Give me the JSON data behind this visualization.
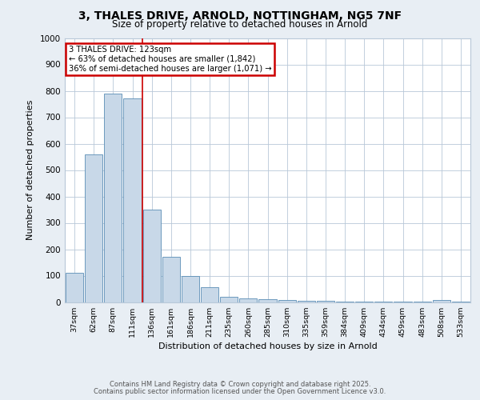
{
  "title_line1": "3, THALES DRIVE, ARNOLD, NOTTINGHAM, NG5 7NF",
  "title_line2": "Size of property relative to detached houses in Arnold",
  "xlabel": "Distribution of detached houses by size in Arnold",
  "ylabel": "Number of detached properties",
  "categories": [
    "37sqm",
    "62sqm",
    "87sqm",
    "111sqm",
    "136sqm",
    "161sqm",
    "186sqm",
    "211sqm",
    "235sqm",
    "260sqm",
    "285sqm",
    "310sqm",
    "335sqm",
    "359sqm",
    "384sqm",
    "409sqm",
    "434sqm",
    "459sqm",
    "483sqm",
    "508sqm",
    "533sqm"
  ],
  "values": [
    110,
    560,
    790,
    770,
    350,
    170,
    100,
    55,
    20,
    15,
    10,
    8,
    5,
    5,
    3,
    3,
    2,
    2,
    2,
    7,
    2
  ],
  "bar_color": "#c8d8e8",
  "bar_edge_color": "#5a8db5",
  "red_line_x": 3.5,
  "annotation_text": "3 THALES DRIVE: 123sqm\n← 63% of detached houses are smaller (1,842)\n36% of semi-detached houses are larger (1,071) →",
  "annotation_box_color": "#ffffff",
  "annotation_box_edge_color": "#cc0000",
  "red_line_color": "#cc0000",
  "ylim": [
    0,
    1000
  ],
  "yticks": [
    0,
    100,
    200,
    300,
    400,
    500,
    600,
    700,
    800,
    900,
    1000
  ],
  "footer_line1": "Contains HM Land Registry data © Crown copyright and database right 2025.",
  "footer_line2": "Contains public sector information licensed under the Open Government Licence v3.0.",
  "bg_color": "#e8eef4",
  "plot_bg_color": "#ffffff",
  "grid_color": "#b8c8d8",
  "title_color": "#000000",
  "tick_label_color": "#000000"
}
